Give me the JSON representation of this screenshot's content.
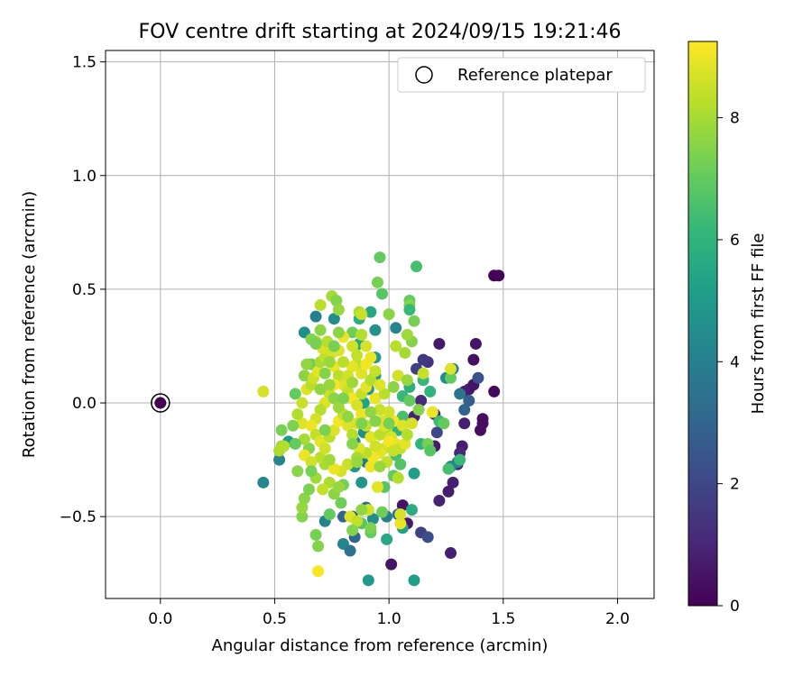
{
  "chart_data": {
    "type": "scatter",
    "title": "FOV centre drift starting at 2024/09/15 19:21:46",
    "xlabel": "Angular distance from reference (arcmin)",
    "ylabel": "Rotation from reference (arcmin)",
    "xlim": [
      -0.24,
      2.16
    ],
    "ylim": [
      -0.86,
      1.55
    ],
    "xticks": [
      0.0,
      0.5,
      1.0,
      1.5,
      2.0
    ],
    "xtick_labels": [
      "0.0",
      "0.5",
      "1.0",
      "1.5",
      "2.0"
    ],
    "yticks": [
      -0.5,
      0.0,
      0.5,
      1.0,
      1.5
    ],
    "ytick_labels": [
      "−0.5",
      "0.0",
      "0.5",
      "1.0",
      "1.5"
    ],
    "grid": true,
    "legend": {
      "position": "top-right",
      "entries": [
        "Reference platepar"
      ]
    },
    "reference_point": {
      "x": 0.0,
      "y": 0.0
    },
    "colorbar": {
      "label": "Hours from first FF file",
      "min": 0,
      "max": 9.25,
      "ticks": [
        0,
        2,
        4,
        6,
        8
      ],
      "tick_labels": [
        "0",
        "2",
        "4",
        "6",
        "8"
      ],
      "colormap": "viridis",
      "stops": [
        "#440154",
        "#482878",
        "#3e4989",
        "#31688e",
        "#26828e",
        "#1f9e89",
        "#35b779",
        "#6ece58",
        "#b5de2b",
        "#fde725"
      ]
    },
    "points": [
      [
        1.46,
        0.56,
        0.1
      ],
      [
        1.48,
        0.56,
        0.1
      ],
      [
        1.46,
        0.05,
        0.2
      ],
      [
        1.41,
        -0.07,
        0.3
      ],
      [
        1.41,
        -0.09,
        0.3
      ],
      [
        1.4,
        -0.12,
        0.3
      ],
      [
        1.37,
        0.19,
        0.4
      ],
      [
        1.38,
        0.26,
        0.5
      ],
      [
        1.35,
        0.06,
        0.6
      ],
      [
        1.37,
        0.08,
        0.5
      ],
      [
        1.33,
        0.05,
        0.7
      ],
      [
        1.33,
        -0.09,
        0.8
      ],
      [
        1.32,
        -0.19,
        0.8
      ],
      [
        1.31,
        -0.22,
        1.0
      ],
      [
        1.3,
        -0.27,
        0.9
      ],
      [
        1.28,
        -0.35,
        0.8
      ],
      [
        1.26,
        -0.39,
        0.7
      ],
      [
        1.27,
        -0.66,
        0.8
      ],
      [
        1.22,
        -0.43,
        0.9
      ],
      [
        1.22,
        0.26,
        0.6
      ],
      [
        1.2,
        -0.19,
        0.7
      ],
      [
        1.2,
        -0.05,
        1.0
      ],
      [
        1.14,
        0.01,
        1.1
      ],
      [
        1.11,
        -0.06,
        0.9
      ],
      [
        1.06,
        -0.45,
        0.5
      ],
      [
        1.08,
        -0.53,
        0.6
      ],
      [
        1.01,
        -0.71,
        0.5
      ],
      [
        1.17,
        0.18,
        1.4
      ],
      [
        1.15,
        0.19,
        1.6
      ],
      [
        1.12,
        0.15,
        1.8
      ],
      [
        1.21,
        -0.13,
        2.0
      ],
      [
        1.14,
        -0.57,
        1.8
      ],
      [
        1.17,
        -0.59,
        2.2
      ],
      [
        1.39,
        0.11,
        2.4
      ],
      [
        1.35,
        0.01,
        2.8
      ],
      [
        1.33,
        -0.03,
        3.0
      ],
      [
        1.31,
        0.04,
        3.5
      ],
      [
        1.3,
        -0.26,
        3.8
      ],
      [
        1.27,
        -0.28,
        4.3
      ],
      [
        1.25,
        0.11,
        4.5
      ],
      [
        1.28,
        0.15,
        4.0
      ],
      [
        1.04,
        -0.49,
        3.2
      ],
      [
        0.85,
        -0.59,
        3.0
      ],
      [
        0.9,
        -0.46,
        3.3
      ],
      [
        0.9,
        -0.26,
        3.7
      ],
      [
        0.99,
        -0.5,
        4.0
      ],
      [
        1.11,
        -0.78,
        5.2
      ],
      [
        0.91,
        -0.78,
        5.0
      ],
      [
        0.8,
        -0.62,
        4.3
      ],
      [
        0.83,
        -0.65,
        3.5
      ],
      [
        0.8,
        -0.5,
        3.0
      ],
      [
        0.84,
        -0.5,
        2.5
      ],
      [
        0.72,
        -0.52,
        4.1
      ],
      [
        0.45,
        -0.35,
        4.3
      ],
      [
        0.52,
        -0.25,
        4.2
      ],
      [
        0.56,
        -0.17,
        5.0
      ],
      [
        0.63,
        0.31,
        4.5
      ],
      [
        0.68,
        0.38,
        4.0
      ],
      [
        0.76,
        0.37,
        4.5
      ],
      [
        0.94,
        0.32,
        4.7
      ],
      [
        1.03,
        0.33,
        4.2
      ],
      [
        0.92,
        0.4,
        5.5
      ],
      [
        0.87,
        0.37,
        5.8
      ],
      [
        0.87,
        0.26,
        5.5
      ],
      [
        0.94,
        0.2,
        5.0
      ],
      [
        0.94,
        0.12,
        4.8
      ],
      [
        0.91,
        0.06,
        5.0
      ],
      [
        0.89,
        0.0,
        5.3
      ],
      [
        0.89,
        -0.13,
        4.5
      ],
      [
        0.85,
        -0.17,
        4.5
      ],
      [
        0.85,
        -0.28,
        4.8
      ],
      [
        0.88,
        -0.35,
        4.9
      ],
      [
        0.93,
        -0.51,
        4.5
      ],
      [
        0.99,
        -0.6,
        5.5
      ],
      [
        1.06,
        -0.55,
        5.3
      ],
      [
        1.1,
        -0.47,
        5.7
      ],
      [
        1.11,
        -0.31,
        5.2
      ],
      [
        1.14,
        -0.18,
        6.0
      ],
      [
        1.18,
        0.05,
        6.0
      ],
      [
        1.22,
        -0.08,
        6.3
      ],
      [
        1.15,
        0.1,
        6.2
      ],
      [
        1.09,
        0.07,
        5.8
      ],
      [
        1.06,
        0.03,
        6.2
      ],
      [
        1.06,
        -0.06,
        6.5
      ],
      [
        1.04,
        -0.12,
        6.0
      ],
      [
        1.03,
        -0.23,
        6.5
      ],
      [
        1.05,
        -0.27,
        6.7
      ],
      [
        1.02,
        -0.32,
        7.0
      ],
      [
        0.98,
        -0.37,
        6.8
      ],
      [
        0.97,
        -0.48,
        7.2
      ],
      [
        0.92,
        -0.57,
        7.0
      ],
      [
        0.88,
        -0.53,
        6.8
      ],
      [
        0.79,
        -0.44,
        7.2
      ],
      [
        0.74,
        -0.49,
        7.0
      ],
      [
        0.69,
        -0.63,
        7.5
      ],
      [
        0.68,
        -0.58,
        7.3
      ],
      [
        0.62,
        -0.5,
        7.5
      ],
      [
        0.62,
        -0.46,
        7.8
      ],
      [
        0.63,
        -0.42,
        7.6
      ],
      [
        0.65,
        -0.38,
        7.4
      ],
      [
        0.68,
        -0.33,
        7.9
      ],
      [
        0.72,
        -0.27,
        8.0
      ],
      [
        0.7,
        -0.24,
        8.3
      ],
      [
        0.65,
        -0.2,
        7.5
      ],
      [
        0.63,
        -0.16,
        8.0
      ],
      [
        0.59,
        -0.18,
        7.0
      ],
      [
        0.53,
        -0.19,
        7.8
      ],
      [
        0.52,
        -0.21,
        8.1
      ],
      [
        0.53,
        -0.12,
        7.3
      ],
      [
        0.59,
        0.04,
        7.0
      ],
      [
        0.63,
        0.12,
        7.6
      ],
      [
        0.66,
        0.17,
        7.2
      ],
      [
        0.68,
        0.27,
        7.9
      ],
      [
        0.7,
        0.43,
        8.3
      ],
      [
        0.75,
        0.47,
        8.0
      ],
      [
        0.77,
        0.45,
        7.5
      ],
      [
        0.78,
        0.41,
        7.8
      ],
      [
        0.84,
        0.31,
        7.2
      ],
      [
        0.87,
        0.4,
        8.1
      ],
      [
        0.88,
        0.39,
        8.5
      ],
      [
        0.95,
        0.53,
        7.3
      ],
      [
        0.96,
        0.64,
        7.0
      ],
      [
        0.97,
        0.48,
        6.8
      ],
      [
        1.0,
        0.39,
        7.6
      ],
      [
        1.09,
        0.45,
        7.0
      ],
      [
        1.09,
        0.43,
        7.5
      ],
      [
        1.12,
        0.6,
        6.5
      ],
      [
        1.09,
        0.41,
        6.2
      ],
      [
        1.11,
        0.36,
        7.3
      ],
      [
        1.1,
        0.27,
        7.5
      ],
      [
        1.08,
        0.3,
        7.9
      ],
      [
        1.07,
        0.22,
        8.0
      ],
      [
        1.03,
        0.25,
        8.3
      ],
      [
        1.04,
        0.12,
        8.6
      ],
      [
        1.08,
        0.1,
        7.8
      ],
      [
        1.09,
        0.01,
        7.0
      ],
      [
        1.13,
        -0.03,
        7.5
      ],
      [
        1.17,
        -0.18,
        7.3
      ],
      [
        1.18,
        -0.21,
        6.8
      ],
      [
        1.24,
        -0.09,
        7.0
      ],
      [
        1.26,
        -0.29,
        6.5
      ],
      [
        1.27,
        0.11,
        7.0
      ],
      [
        1.31,
        -0.25,
        6.2
      ],
      [
        1.19,
        -0.04,
        9.0
      ],
      [
        1.15,
        0.13,
        8.5
      ],
      [
        1.27,
        0.15,
        8.8
      ],
      [
        0.45,
        0.05,
        8.7
      ],
      [
        0.54,
        -0.19,
        8.2
      ],
      [
        0.63,
        -0.23,
        9.0
      ],
      [
        0.69,
        -0.74,
        9.2
      ],
      [
        0.83,
        -0.5,
        8.8
      ],
      [
        0.86,
        -0.52,
        8.4
      ],
      [
        0.91,
        -0.47,
        8.6
      ],
      [
        0.95,
        -0.37,
        8.9
      ],
      [
        1.05,
        -0.53,
        9.0
      ],
      [
        1.05,
        -0.49,
        8.7
      ],
      [
        1.04,
        -0.33,
        8.2
      ],
      [
        0.99,
        -0.26,
        8.4
      ],
      [
        0.98,
        -0.2,
        8.6
      ],
      [
        0.96,
        -0.22,
        8.9
      ],
      [
        0.93,
        -0.24,
        9.1
      ],
      [
        0.92,
        -0.28,
        9.0
      ],
      [
        0.9,
        -0.22,
        8.3
      ],
      [
        0.87,
        -0.2,
        8.8
      ],
      [
        0.86,
        -0.24,
        8.0
      ],
      [
        0.82,
        -0.27,
        8.5
      ],
      [
        0.79,
        -0.3,
        8.7
      ],
      [
        0.76,
        -0.29,
        9.0
      ],
      [
        0.74,
        -0.35,
        8.1
      ],
      [
        0.71,
        -0.38,
        8.4
      ],
      [
        0.66,
        -0.26,
        8.6
      ],
      [
        0.62,
        -0.09,
        8.8
      ],
      [
        0.6,
        -0.05,
        8.2
      ],
      [
        0.62,
        0.0,
        8.5
      ],
      [
        0.64,
        0.06,
        8.8
      ],
      [
        0.66,
        0.08,
        8.3
      ],
      [
        0.67,
        0.11,
        8.6
      ],
      [
        0.69,
        0.14,
        8.9
      ],
      [
        0.7,
        0.18,
        8.0
      ],
      [
        0.72,
        0.2,
        8.4
      ],
      [
        0.71,
        0.24,
        8.7
      ],
      [
        0.73,
        0.27,
        8.2
      ],
      [
        0.75,
        0.22,
        8.6
      ],
      [
        0.76,
        0.16,
        9.0
      ],
      [
        0.78,
        0.12,
        8.3
      ],
      [
        0.8,
        0.08,
        8.8
      ],
      [
        0.82,
        0.05,
        8.5
      ],
      [
        0.84,
        0.02,
        9.1
      ],
      [
        0.86,
        -0.01,
        8.7
      ],
      [
        0.88,
        0.04,
        8.4
      ],
      [
        0.9,
        0.07,
        8.9
      ],
      [
        0.92,
        0.1,
        8.2
      ],
      [
        0.8,
        0.29,
        9.0
      ],
      [
        0.84,
        0.25,
        8.6
      ],
      [
        0.86,
        0.17,
        8.3
      ],
      [
        0.88,
        0.13,
        8.8
      ],
      [
        0.9,
        0.17,
        9.1
      ],
      [
        0.94,
        0.02,
        9.0
      ],
      [
        0.96,
        -0.03,
        8.5
      ],
      [
        0.97,
        -0.08,
        8.8
      ],
      [
        0.99,
        -0.12,
        8.2
      ],
      [
        1.01,
        -0.15,
        8.7
      ],
      [
        1.03,
        -0.18,
        9.0
      ],
      [
        1.05,
        -0.2,
        8.4
      ],
      [
        1.07,
        -0.18,
        8.9
      ],
      [
        1.02,
        -0.08,
        9.1
      ],
      [
        1.0,
        -0.04,
        8.6
      ],
      [
        0.98,
        0.04,
        8.3
      ],
      [
        0.96,
        0.08,
        8.8
      ],
      [
        0.94,
        0.14,
        8.5
      ],
      [
        0.92,
        0.2,
        9.0
      ],
      [
        0.9,
        0.25,
        8.7
      ],
      [
        0.88,
        0.3,
        8.2
      ],
      [
        0.86,
        0.21,
        8.4
      ],
      [
        0.84,
        0.16,
        8.9
      ],
      [
        0.82,
        0.12,
        8.6
      ],
      [
        0.8,
        0.18,
        8.3
      ],
      [
        0.78,
        0.23,
        8.8
      ],
      [
        0.76,
        0.08,
        9.1
      ],
      [
        0.74,
        0.04,
        8.5
      ],
      [
        0.72,
        0.0,
        8.8
      ],
      [
        0.7,
        -0.03,
        8.2
      ],
      [
        0.68,
        -0.07,
        8.7
      ],
      [
        0.66,
        -0.1,
        9.0
      ],
      [
        0.68,
        -0.14,
        8.4
      ],
      [
        0.7,
        -0.17,
        8.9
      ],
      [
        0.72,
        -0.2,
        8.6
      ],
      [
        0.74,
        -0.15,
        8.3
      ],
      [
        0.76,
        -0.12,
        8.8
      ],
      [
        0.78,
        -0.08,
        9.1
      ],
      [
        0.8,
        -0.05,
        8.5
      ],
      [
        0.82,
        -0.1,
        8.8
      ],
      [
        0.84,
        -0.14,
        8.2
      ],
      [
        0.86,
        -0.09,
        8.7
      ],
      [
        0.88,
        -0.05,
        9.0
      ],
      [
        0.9,
        -0.1,
        8.4
      ],
      [
        0.92,
        -0.15,
        8.9
      ],
      [
        0.94,
        -0.19,
        8.6
      ],
      [
        0.96,
        -0.14,
        8.3
      ],
      [
        0.98,
        -0.1,
        8.8
      ],
      [
        1.0,
        -0.17,
        9.1
      ],
      [
        1.02,
        -0.21,
        8.5
      ],
      [
        1.06,
        -0.1,
        8.8
      ],
      [
        1.08,
        -0.14,
        8.2
      ],
      [
        1.1,
        -0.09,
        8.7
      ],
      [
        0.74,
        0.08,
        7.8
      ],
      [
        0.76,
        0.02,
        7.6
      ],
      [
        0.78,
        -0.02,
        7.9
      ],
      [
        0.8,
        0.02,
        7.4
      ],
      [
        0.82,
        -0.06,
        7.7
      ],
      [
        0.84,
        -0.18,
        7.5
      ],
      [
        0.86,
        -0.26,
        7.8
      ],
      [
        0.8,
        -0.36,
        7.3
      ],
      [
        0.76,
        -0.4,
        7.6
      ],
      [
        0.74,
        -0.25,
        7.9
      ],
      [
        0.72,
        -0.12,
        7.4
      ],
      [
        0.7,
        0.06,
        7.7
      ],
      [
        0.72,
        0.13,
        7.5
      ],
      [
        0.74,
        0.18,
        7.8
      ],
      [
        0.76,
        0.25,
        7.3
      ],
      [
        0.78,
        0.31,
        7.6
      ],
      [
        0.84,
        0.09,
        7.9
      ],
      [
        0.88,
        -0.09,
        7.4
      ],
      [
        0.92,
        -0.04,
        7.7
      ],
      [
        0.94,
        -0.08,
        7.5
      ],
      [
        0.96,
        -0.28,
        7.8
      ],
      [
        1.0,
        -0.09,
        7.3
      ],
      [
        1.02,
        0.07,
        7.6
      ],
      [
        0.92,
        -0.55,
        7.4
      ],
      [
        0.88,
        -0.47,
        7.7
      ],
      [
        0.84,
        -0.56,
        7.5
      ],
      [
        0.78,
        -0.37,
        7.8
      ],
      [
        0.66,
        -0.3,
        7.3
      ],
      [
        0.6,
        -0.3,
        7.6
      ],
      [
        0.58,
        -0.1,
        7.4
      ],
      [
        0.64,
        0.17,
        7.7
      ],
      [
        0.66,
        0.28,
        7.5
      ],
      [
        0.68,
        0.26,
        7.3
      ],
      [
        0.7,
        0.32,
        7.6
      ]
    ]
  }
}
